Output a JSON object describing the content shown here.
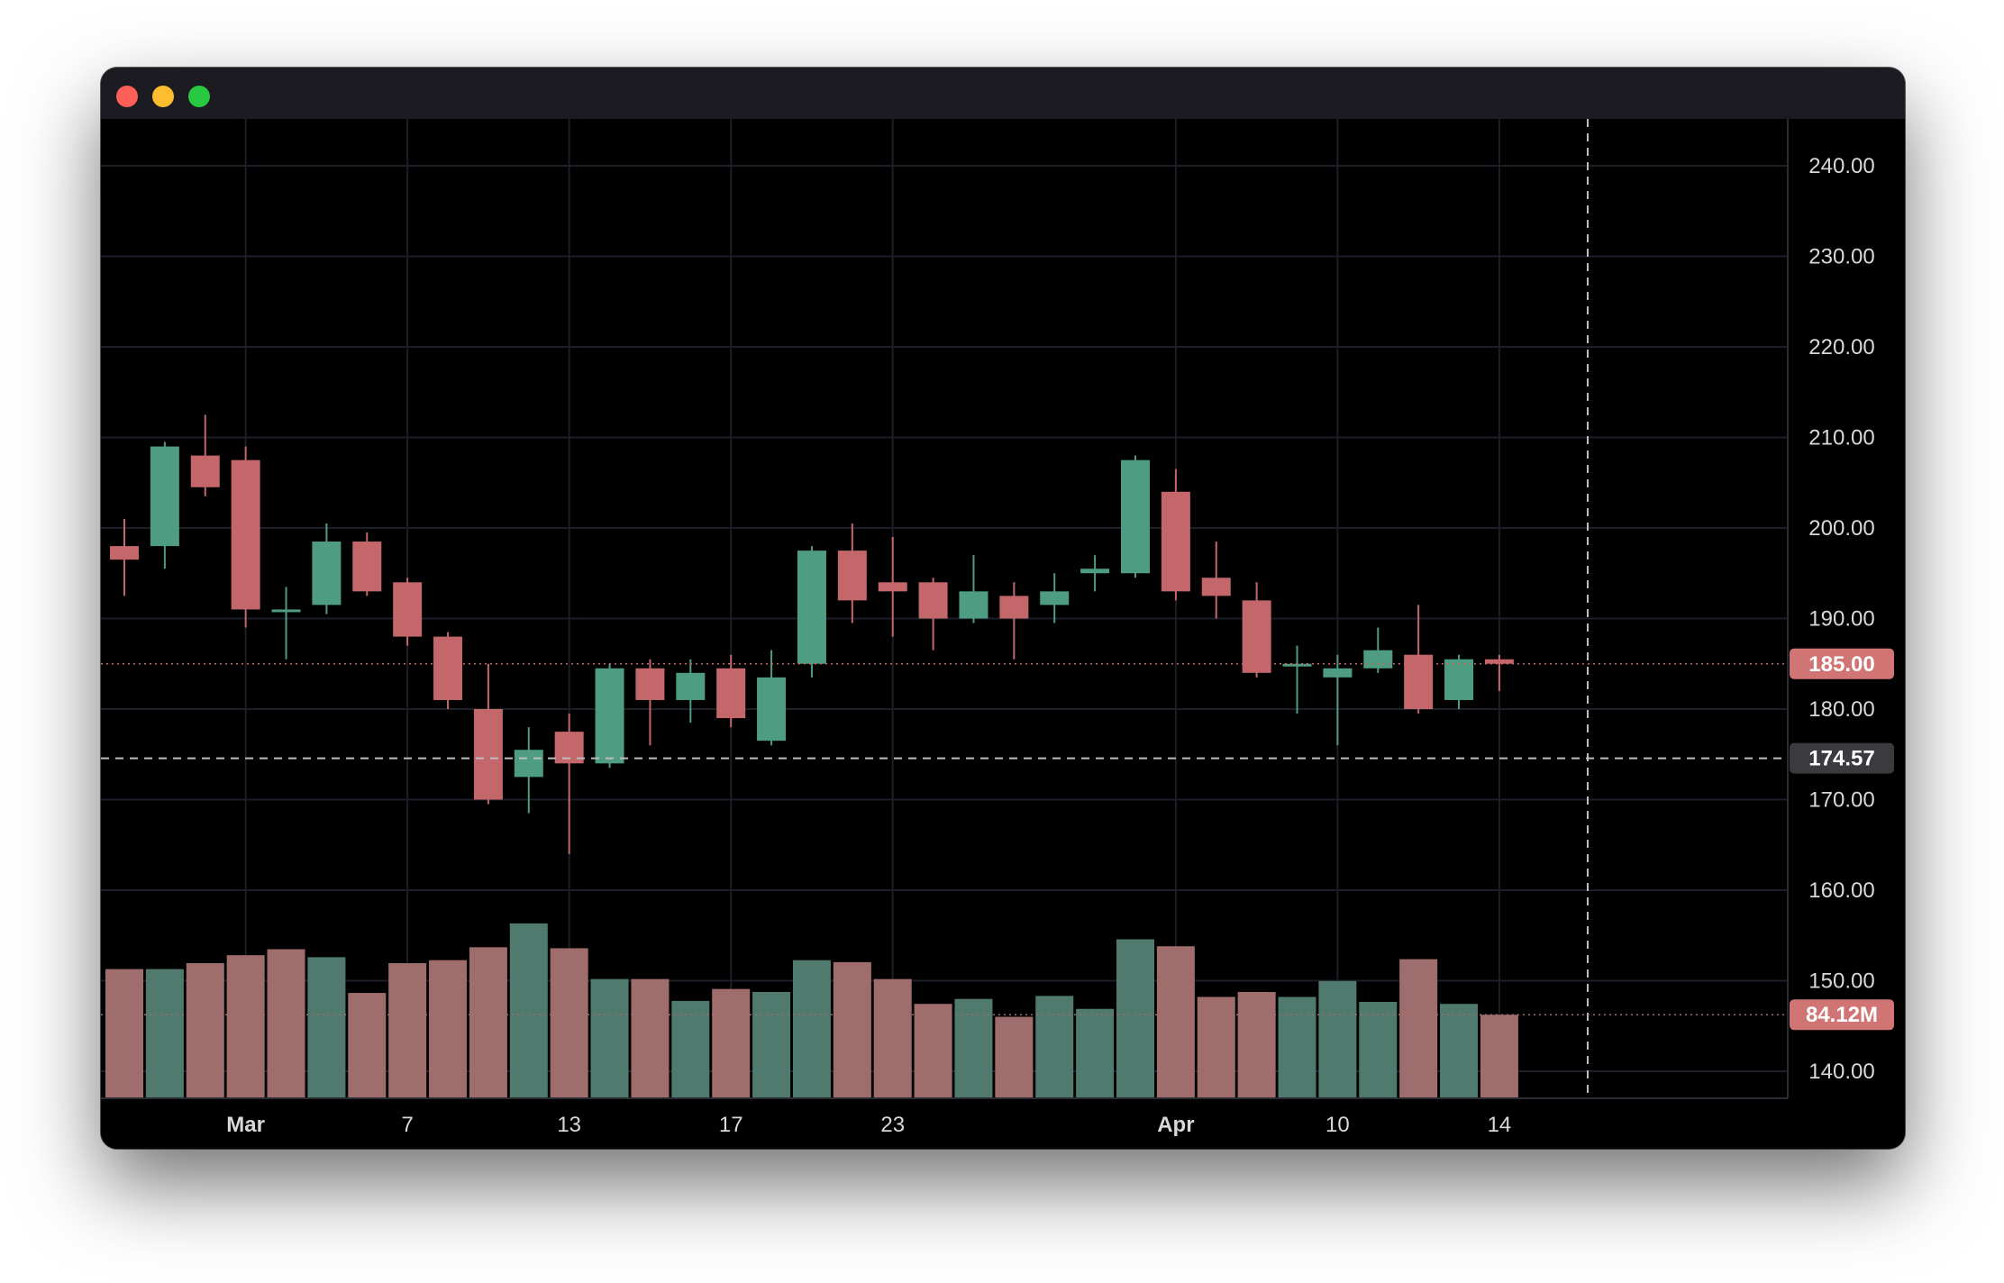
{
  "window": {
    "controls": [
      "close",
      "minimize",
      "zoom"
    ]
  },
  "colors": {
    "up": "#4e9c82",
    "down": "#c4676a",
    "up_volume": "#4f7a6d",
    "down_volume": "#a06d6d",
    "grid": "#1c1e28",
    "background": "#000000",
    "axis_text": "#d8d8d8",
    "last_price_label": "#d17474",
    "crosshair_label": "#3a3a3f"
  },
  "chart_data": {
    "type": "candlestick",
    "y_axis": {
      "ylim": [
        135,
        245
      ],
      "ticks": [
        140,
        150,
        160,
        170,
        180,
        190,
        200,
        210,
        220,
        230,
        240
      ],
      "tick_labels": [
        "140.00",
        "150.00",
        "160.00",
        "170.00",
        "180.00",
        "190.00",
        "200.00",
        "210.00",
        "220.00",
        "230.00",
        "240.00"
      ]
    },
    "x_axis": {
      "labels": [
        {
          "text": "Mar",
          "index": 3,
          "bold": true
        },
        {
          "text": "7",
          "index": 7,
          "bold": false
        },
        {
          "text": "13",
          "index": 11,
          "bold": false
        },
        {
          "text": "17",
          "index": 15,
          "bold": false
        },
        {
          "text": "23",
          "index": 19,
          "bold": false
        },
        {
          "text": "Apr",
          "index": 26,
          "bold": true
        },
        {
          "text": "10",
          "index": 30,
          "bold": false
        },
        {
          "text": "14",
          "index": 34,
          "bold": false
        }
      ]
    },
    "candles": [
      {
        "o": 198,
        "h": 201,
        "l": 192.5,
        "c": 196.5
      },
      {
        "o": 198,
        "h": 209.5,
        "l": 195.5,
        "c": 209
      },
      {
        "o": 208,
        "h": 212.5,
        "l": 203.5,
        "c": 204.5
      },
      {
        "o": 207.5,
        "h": 209,
        "l": 189,
        "c": 191
      },
      {
        "o": 191,
        "h": 193.5,
        "l": 185.5,
        "c": 191
      },
      {
        "o": 191.5,
        "h": 200.5,
        "l": 190.5,
        "c": 198.5
      },
      {
        "o": 198.5,
        "h": 199.5,
        "l": 192.5,
        "c": 193
      },
      {
        "o": 194,
        "h": 194.5,
        "l": 187,
        "c": 188
      },
      {
        "o": 188,
        "h": 188.5,
        "l": 180,
        "c": 181
      },
      {
        "o": 180,
        "h": 185,
        "l": 169.5,
        "c": 170
      },
      {
        "o": 172.5,
        "h": 178,
        "l": 168.5,
        "c": 175.5
      },
      {
        "o": 177.5,
        "h": 179.5,
        "l": 164,
        "c": 174
      },
      {
        "o": 174,
        "h": 185,
        "l": 173.5,
        "c": 184.5
      },
      {
        "o": 184.5,
        "h": 185.5,
        "l": 176,
        "c": 181
      },
      {
        "o": 181,
        "h": 185.5,
        "l": 178.5,
        "c": 184
      },
      {
        "o": 184.5,
        "h": 186,
        "l": 178,
        "c": 179
      },
      {
        "o": 176.5,
        "h": 186.5,
        "l": 176,
        "c": 183.5
      },
      {
        "o": 185,
        "h": 198,
        "l": 183.5,
        "c": 197.5
      },
      {
        "o": 197.5,
        "h": 200.5,
        "l": 189.5,
        "c": 192
      },
      {
        "o": 194,
        "h": 199,
        "l": 188,
        "c": 193
      },
      {
        "o": 194,
        "h": 194.5,
        "l": 186.5,
        "c": 190
      },
      {
        "o": 190,
        "h": 197,
        "l": 189.5,
        "c": 193
      },
      {
        "o": 192.5,
        "h": 194,
        "l": 185.5,
        "c": 190
      },
      {
        "o": 191.5,
        "h": 195,
        "l": 189.5,
        "c": 193
      },
      {
        "o": 195,
        "h": 197,
        "l": 193,
        "c": 195.5
      },
      {
        "o": 195,
        "h": 208,
        "l": 194.5,
        "c": 207.5
      },
      {
        "o": 204,
        "h": 206.5,
        "l": 192,
        "c": 193
      },
      {
        "o": 194.5,
        "h": 198.5,
        "l": 190,
        "c": 192.5
      },
      {
        "o": 192,
        "h": 194,
        "l": 183.5,
        "c": 184
      },
      {
        "o": 185,
        "h": 187,
        "l": 179.5,
        "c": 185
      },
      {
        "o": 183.5,
        "h": 186,
        "l": 176,
        "c": 184.5
      },
      {
        "o": 184.5,
        "h": 189,
        "l": 184,
        "c": 186.5
      },
      {
        "o": 186,
        "h": 191.5,
        "l": 179.5,
        "c": 180
      },
      {
        "o": 181,
        "h": 186,
        "l": 180,
        "c": 185.5
      },
      {
        "o": 185.5,
        "h": 186,
        "l": 182,
        "c": 185
      }
    ],
    "volume": {
      "unit": "M",
      "max_scale": 165,
      "values": [
        130,
        130,
        136,
        144,
        150,
        142,
        106,
        136,
        139,
        152,
        176,
        151,
        120,
        120,
        98,
        110,
        107,
        139,
        137,
        120,
        95,
        100,
        82,
        103,
        90,
        160,
        153,
        102,
        107,
        102,
        118,
        97,
        140,
        95,
        84.12
      ],
      "up": [
        false,
        true,
        false,
        false,
        false,
        true,
        false,
        false,
        false,
        false,
        true,
        false,
        true,
        false,
        true,
        false,
        true,
        true,
        false,
        false,
        false,
        true,
        false,
        true,
        true,
        true,
        false,
        false,
        false,
        true,
        true,
        true,
        false,
        true,
        false
      ]
    },
    "last_price": {
      "value": 185,
      "label": "185.00"
    },
    "crosshair": {
      "price": 174.57,
      "label": "174.57"
    },
    "last_volume": {
      "value": 84.12,
      "label": "84.12M"
    }
  }
}
